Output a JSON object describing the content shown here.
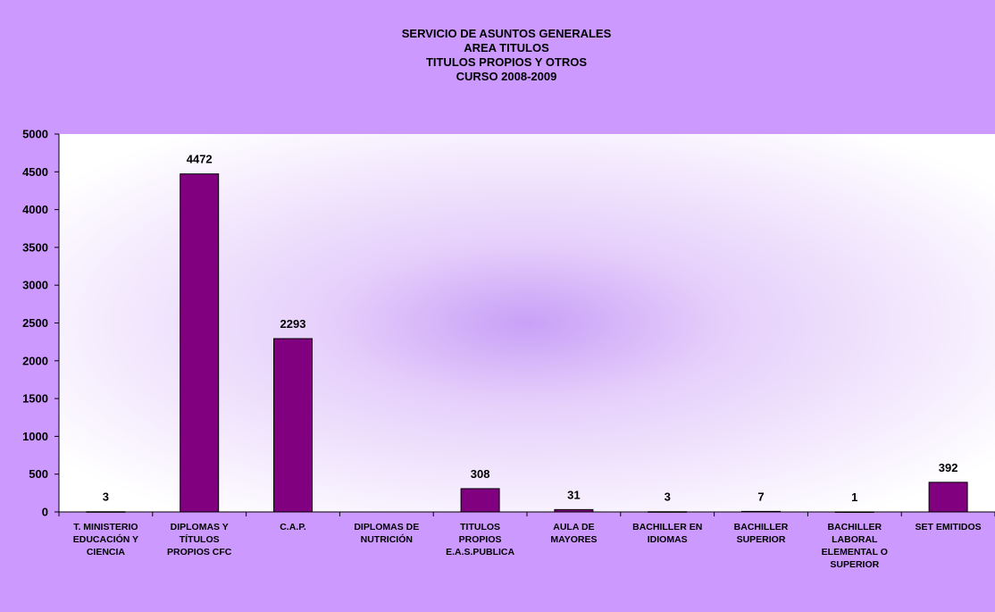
{
  "colors": {
    "background": "#CC99FF",
    "plot_center": "#C9A0F7",
    "plot_edge": "#FFFFFF",
    "bar_fill": "#800080",
    "bar_stroke": "#000000"
  },
  "chart_data": {
    "type": "bar",
    "title_lines": [
      "SERVICIO DE ASUNTOS GENERALES",
      "AREA TITULOS",
      "TITULOS PROPIOS Y OTROS",
      "CURSO 2008-2009"
    ],
    "categories": [
      [
        "T. MINISTERIO",
        "EDUCACIÓN Y",
        "CIENCIA"
      ],
      [
        "DIPLOMAS Y",
        "TÍTULOS",
        "PROPIOS CFC"
      ],
      [
        "C.A.P."
      ],
      [
        "DIPLOMAS DE",
        "NUTRICIÓN"
      ],
      [
        "TITULOS",
        "PROPIOS",
        "E.A.S.PUBLICA"
      ],
      [
        "AULA DE",
        "MAYORES"
      ],
      [
        "BACHILLER EN",
        "IDIOMAS"
      ],
      [
        "BACHILLER",
        "SUPERIOR"
      ],
      [
        "BACHILLER",
        "LABORAL",
        "ELEMENTAL O",
        "SUPERIOR"
      ],
      [
        "SET EMITIDOS"
      ]
    ],
    "values": [
      3,
      4472,
      2293,
      null,
      308,
      31,
      3,
      7,
      1,
      392
    ],
    "data_labels": [
      "3",
      "4472",
      "2293",
      "",
      "308",
      "31",
      "3",
      "7",
      "1",
      "392"
    ],
    "ylim": [
      0,
      5000
    ],
    "yticks": [
      "0",
      "500",
      "1000",
      "1500",
      "2000",
      "2500",
      "3000",
      "3500",
      "4000",
      "4500",
      "5000"
    ],
    "grid": false,
    "legend": "none"
  }
}
